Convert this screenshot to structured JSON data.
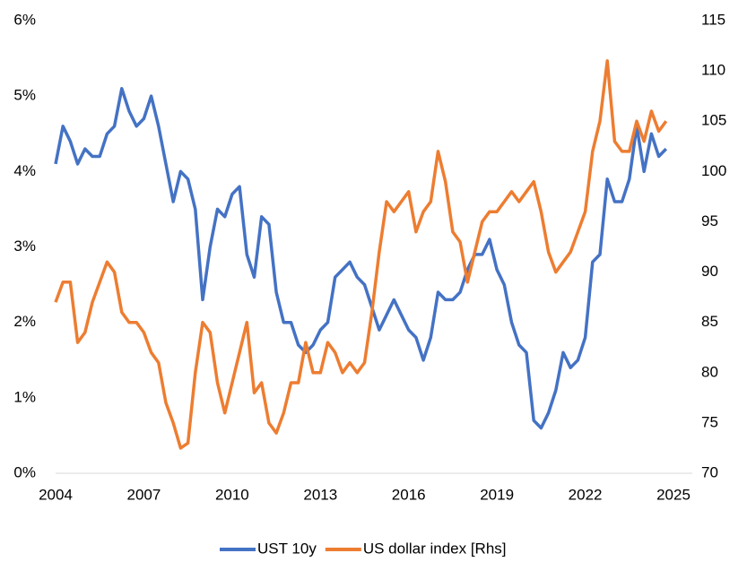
{
  "chart_data": {
    "type": "line",
    "x": [
      2004.0,
      2004.25,
      2004.5,
      2004.75,
      2005.0,
      2005.25,
      2005.5,
      2005.75,
      2006.0,
      2006.25,
      2006.5,
      2006.75,
      2007.0,
      2007.25,
      2007.5,
      2007.75,
      2008.0,
      2008.25,
      2008.5,
      2008.75,
      2009.0,
      2009.25,
      2009.5,
      2009.75,
      2010.0,
      2010.25,
      2010.5,
      2010.75,
      2011.0,
      2011.25,
      2011.5,
      2011.75,
      2012.0,
      2012.25,
      2012.5,
      2012.75,
      2013.0,
      2013.25,
      2013.5,
      2013.75,
      2014.0,
      2014.25,
      2014.5,
      2014.75,
      2015.0,
      2015.25,
      2015.5,
      2015.75,
      2016.0,
      2016.25,
      2016.5,
      2016.75,
      2017.0,
      2017.25,
      2017.5,
      2017.75,
      2018.0,
      2018.25,
      2018.5,
      2018.75,
      2019.0,
      2019.25,
      2019.5,
      2019.75,
      2020.0,
      2020.25,
      2020.5,
      2020.75,
      2021.0,
      2021.25,
      2021.5,
      2021.75,
      2022.0,
      2022.25,
      2022.5,
      2022.75,
      2023.0,
      2023.25,
      2023.5,
      2023.75,
      2024.0,
      2024.25,
      2024.5,
      2024.75
    ],
    "series": [
      {
        "name": "UST 10y",
        "color": "#4472c4",
        "values": [
          4.1,
          4.6,
          4.4,
          4.1,
          4.3,
          4.2,
          4.2,
          4.5,
          4.6,
          5.1,
          4.8,
          4.6,
          4.7,
          5.0,
          4.6,
          4.1,
          3.6,
          4.0,
          3.9,
          3.5,
          2.3,
          3.0,
          3.5,
          3.4,
          3.7,
          3.8,
          2.9,
          2.6,
          3.4,
          3.3,
          2.4,
          2.0,
          2.0,
          1.7,
          1.6,
          1.7,
          1.9,
          2.0,
          2.6,
          2.7,
          2.8,
          2.6,
          2.5,
          2.2,
          1.9,
          2.1,
          2.3,
          2.1,
          1.9,
          1.8,
          1.5,
          1.8,
          2.4,
          2.3,
          2.3,
          2.4,
          2.7,
          2.9,
          2.9,
          3.1,
          2.7,
          2.5,
          2.0,
          1.7,
          1.6,
          0.7,
          0.6,
          0.8,
          1.1,
          1.6,
          1.4,
          1.5,
          1.8,
          2.8,
          2.9,
          3.9,
          3.6,
          3.6,
          3.9,
          4.6,
          4.0,
          4.5,
          4.2,
          4.3
        ]
      },
      {
        "name": "US dollar index [Rhs]",
        "color": "#ed7d31",
        "axis": "y2",
        "values": [
          87,
          89,
          89,
          83,
          84,
          87,
          89,
          91,
          90,
          86,
          85,
          85,
          84,
          82,
          81,
          77,
          75,
          72.5,
          73,
          80,
          85,
          84,
          79,
          76,
          79,
          82,
          85,
          78,
          79,
          75,
          74,
          76,
          79,
          79,
          83,
          80,
          80,
          83,
          82,
          80,
          81,
          80,
          81,
          86,
          92,
          97,
          96,
          97,
          98,
          94,
          96,
          97,
          102,
          99,
          94,
          93,
          89,
          92,
          95,
          96,
          96,
          97,
          98,
          97,
          98,
          99,
          96,
          92,
          90,
          91,
          92,
          94,
          96,
          102,
          105,
          111,
          103,
          102,
          102,
          105,
          103,
          106,
          104,
          105
        ]
      }
    ],
    "xlim": [
      2004,
      2025
    ],
    "xticks": [
      2004,
      2007,
      2010,
      2013,
      2016,
      2019,
      2022,
      2025
    ],
    "ylim": [
      0,
      6
    ],
    "yticks": [
      {
        "value": 0,
        "label": "0%"
      },
      {
        "value": 1,
        "label": "1%"
      },
      {
        "value": 2,
        "label": "2%"
      },
      {
        "value": 3,
        "label": "3%"
      },
      {
        "value": 4,
        "label": "4%"
      },
      {
        "value": 5,
        "label": "5%"
      },
      {
        "value": 6,
        "label": "6%"
      }
    ],
    "y2lim": [
      70,
      115
    ],
    "y2ticks": [
      70,
      75,
      80,
      85,
      90,
      95,
      100,
      105,
      110,
      115
    ],
    "legend": "bottom"
  }
}
